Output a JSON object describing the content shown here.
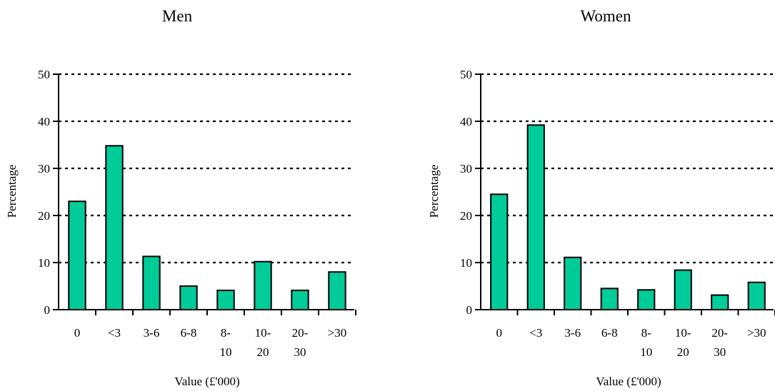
{
  "colors": {
    "bar_fill": "#00CC99",
    "bar_stroke": "#000000",
    "grid": "#000000",
    "axis": "#000000"
  },
  "chart_data": [
    {
      "type": "bar",
      "title": "Men",
      "xlabel": "Value (£'000)",
      "ylabel": "Percentage",
      "categories": [
        [
          "0"
        ],
        [
          "<3"
        ],
        [
          "3-6"
        ],
        [
          "6-8"
        ],
        [
          "8-",
          "10"
        ],
        [
          "10-",
          "20"
        ],
        [
          "20-",
          "30"
        ],
        [
          ">30"
        ]
      ],
      "values": [
        23,
        34.8,
        11.3,
        5,
        4.1,
        10.2,
        4.1,
        8
      ],
      "ylim": [
        0,
        50
      ],
      "yticks": [
        0,
        10,
        20,
        30,
        40,
        50
      ],
      "grid": "dotted horizontal at 10, 20, 30, 40, 50",
      "legend": "none"
    },
    {
      "type": "bar",
      "title": "Women",
      "xlabel": "Value (£'000)",
      "ylabel": "Percentage",
      "categories": [
        [
          "0"
        ],
        [
          "<3"
        ],
        [
          "3-6"
        ],
        [
          "6-8"
        ],
        [
          "8-",
          "10"
        ],
        [
          "10-",
          "20"
        ],
        [
          "20-",
          "30"
        ],
        [
          ">30"
        ]
      ],
      "values": [
        24.5,
        39.2,
        11.1,
        4.5,
        4.2,
        8.4,
        3.1,
        5.8
      ],
      "ylim": [
        0,
        50
      ],
      "yticks": [
        0,
        10,
        20,
        30,
        40,
        50
      ],
      "grid": "dotted horizontal at 10, 20, 30, 40, 50",
      "legend": "none"
    }
  ]
}
